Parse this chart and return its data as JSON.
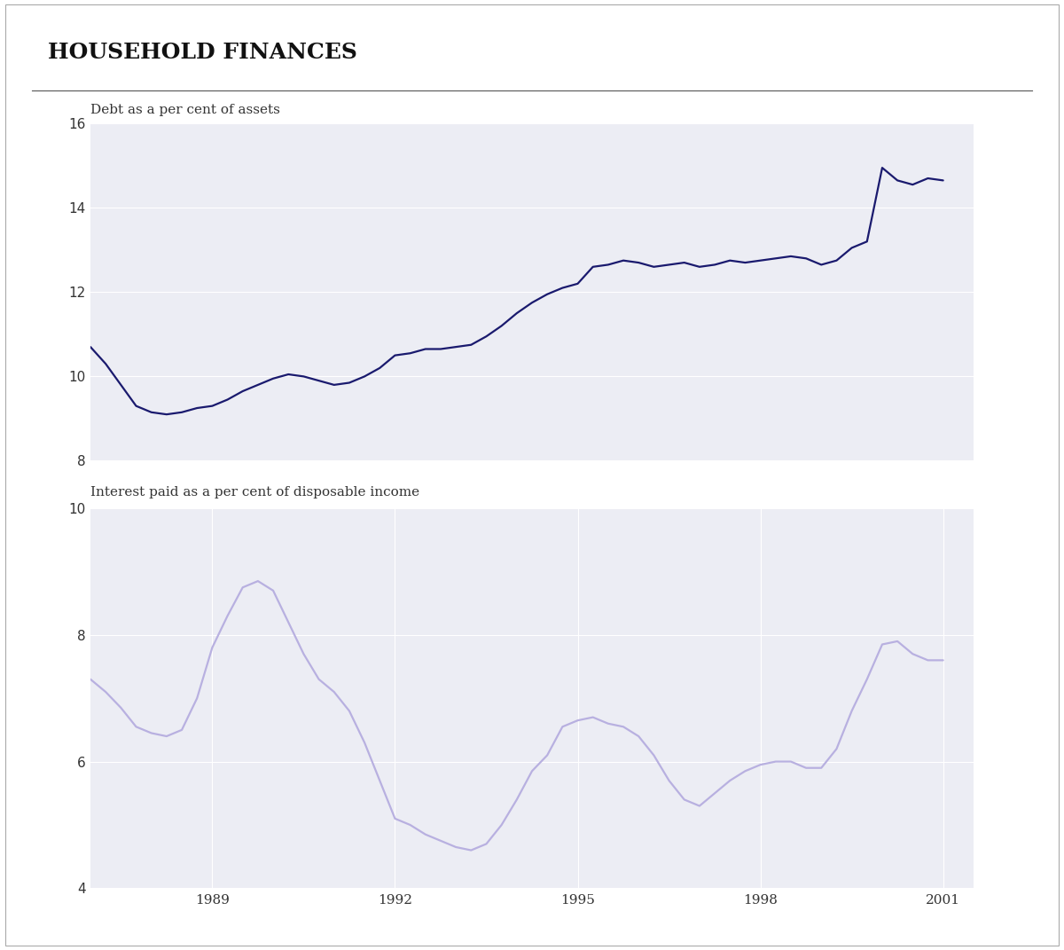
{
  "title": "HOUSEHOLD FINANCES",
  "title_fontsize": 18,
  "title_fontweight": "bold",
  "chart1_label": "Debt as a per cent of assets",
  "chart1_color": "#1a1a6e",
  "chart1_ylim": [
    8,
    16
  ],
  "chart1_yticks": [
    8,
    10,
    12,
    14,
    16
  ],
  "chart1_linewidth": 1.6,
  "chart2_label": "Interest paid as a per cent of disposable income",
  "chart2_color": "#b8b0e0",
  "chart2_ylim": [
    4,
    10
  ],
  "chart2_yticks": [
    4,
    6,
    8,
    10
  ],
  "chart2_linewidth": 1.6,
  "xtick_years": [
    1989,
    1992,
    1995,
    1998,
    2001
  ],
  "background_color": "#ffffff",
  "outer_bg": "#ffffff",
  "plot_bg_color": "#ecedf4",
  "grid_color": "#ffffff",
  "separator_color": "#555555",
  "label_color": "#333333",
  "tick_color": "#333333",
  "border_color": "#aaaaaa",
  "debt_x": [
    1987.0,
    1987.25,
    1987.5,
    1987.75,
    1988.0,
    1988.25,
    1988.5,
    1988.75,
    1989.0,
    1989.25,
    1989.5,
    1989.75,
    1990.0,
    1990.25,
    1990.5,
    1990.75,
    1991.0,
    1991.25,
    1991.5,
    1991.75,
    1992.0,
    1992.25,
    1992.5,
    1992.75,
    1993.0,
    1993.25,
    1993.5,
    1993.75,
    1994.0,
    1994.25,
    1994.5,
    1994.75,
    1995.0,
    1995.25,
    1995.5,
    1995.75,
    1996.0,
    1996.25,
    1996.5,
    1996.75,
    1997.0,
    1997.25,
    1997.5,
    1997.75,
    1998.0,
    1998.25,
    1998.5,
    1998.75,
    1999.0,
    1999.25,
    1999.5,
    1999.75,
    2000.0,
    2000.25,
    2000.5,
    2000.75,
    2001.0
  ],
  "debt_y": [
    10.7,
    10.3,
    9.8,
    9.3,
    9.15,
    9.1,
    9.15,
    9.25,
    9.3,
    9.45,
    9.65,
    9.8,
    9.95,
    10.05,
    10.0,
    9.9,
    9.8,
    9.85,
    10.0,
    10.2,
    10.5,
    10.55,
    10.65,
    10.65,
    10.7,
    10.75,
    10.95,
    11.2,
    11.5,
    11.75,
    11.95,
    12.1,
    12.2,
    12.6,
    12.65,
    12.75,
    12.7,
    12.6,
    12.65,
    12.7,
    12.6,
    12.65,
    12.75,
    12.7,
    12.75,
    12.8,
    12.85,
    12.8,
    12.65,
    12.75,
    13.05,
    13.2,
    14.95,
    14.65,
    14.55,
    14.7,
    14.65
  ],
  "interest_x": [
    1987.0,
    1987.25,
    1987.5,
    1987.75,
    1988.0,
    1988.25,
    1988.5,
    1988.75,
    1989.0,
    1989.25,
    1989.5,
    1989.75,
    1990.0,
    1990.25,
    1990.5,
    1990.75,
    1991.0,
    1991.25,
    1991.5,
    1991.75,
    1992.0,
    1992.25,
    1992.5,
    1992.75,
    1993.0,
    1993.25,
    1993.5,
    1993.75,
    1994.0,
    1994.25,
    1994.5,
    1994.75,
    1995.0,
    1995.25,
    1995.5,
    1995.75,
    1996.0,
    1996.25,
    1996.5,
    1996.75,
    1997.0,
    1997.25,
    1997.5,
    1997.75,
    1998.0,
    1998.25,
    1998.5,
    1998.75,
    1999.0,
    1999.25,
    1999.5,
    1999.75,
    2000.0,
    2000.25,
    2000.5,
    2000.75,
    2001.0
  ],
  "interest_y": [
    7.3,
    7.1,
    6.85,
    6.55,
    6.45,
    6.4,
    6.5,
    7.0,
    7.8,
    8.3,
    8.75,
    8.85,
    8.7,
    8.2,
    7.7,
    7.3,
    7.1,
    6.8,
    6.3,
    5.7,
    5.1,
    5.0,
    4.85,
    4.75,
    4.65,
    4.6,
    4.7,
    5.0,
    5.4,
    5.85,
    6.1,
    6.55,
    6.65,
    6.7,
    6.6,
    6.55,
    6.4,
    6.1,
    5.7,
    5.4,
    5.3,
    5.5,
    5.7,
    5.85,
    5.95,
    6.0,
    6.0,
    5.9,
    5.9,
    6.2,
    6.8,
    7.3,
    7.85,
    7.9,
    7.7,
    7.6,
    7.6
  ]
}
